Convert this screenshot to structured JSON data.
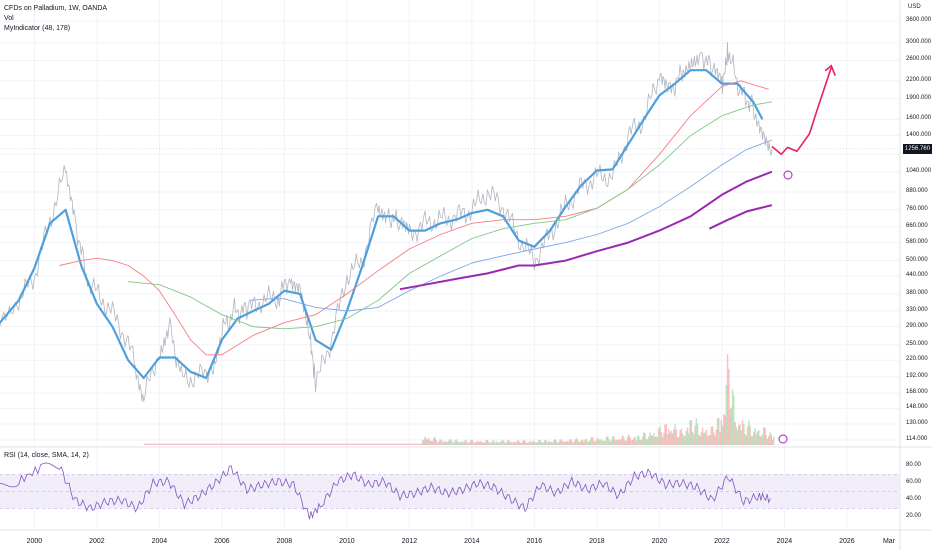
{
  "legend": {
    "title": "CFDs on Palladium, 1W, OANDA",
    "vol_label": "Vol",
    "indicator_label": "MyIndicator (48, 178)"
  },
  "rsi": {
    "label": "RSI (14, close, SMA, 14, 2)",
    "ticks": [
      "80.00",
      "60.00",
      "40.00",
      "20.00"
    ],
    "band_color": "#ede7f6",
    "line_color": "#7e57c2"
  },
  "currency": "USD",
  "last_price": "1256.760",
  "colors": {
    "price_line": "#b2b5be",
    "thick_ma": "#4e9fdd",
    "red_ma": "#f77c80",
    "green_ma": "#81c784",
    "blue_ma": "#7fa8e6",
    "purple_ma": "#9c27b0",
    "projection": "#e91e63"
  },
  "chart_data": {
    "type": "line",
    "title": "CFDs on Palladium, 1W, OANDA",
    "x_ticks": [
      "2000",
      "2002",
      "2004",
      "2006",
      "2008",
      "2010",
      "2012",
      "2014",
      "2016",
      "2018",
      "2020",
      "2022",
      "2024",
      "2026",
      "Mar"
    ],
    "y_ticks": [
      "3600.000",
      "3000.000",
      "2600.000",
      "2200.000",
      "1900.000",
      "1600.000",
      "1400.000",
      "1200.000",
      "1040.000",
      "880.000",
      "760.000",
      "660.000",
      "580.000",
      "500.000",
      "440.000",
      "380.000",
      "330.000",
      "290.000",
      "250.000",
      "220.000",
      "192.000",
      "168.000",
      "148.000",
      "130.000",
      "114.000"
    ],
    "y_scale": "log",
    "series": [
      {
        "name": "",
        "role": "price",
        "x": [
          1998.9,
          1999.5,
          2000.0,
          2000.5,
          2001.0,
          2001.3,
          2001.7,
          2002.2,
          2002.7,
          2003.2,
          2003.5,
          2004.0,
          2004.3,
          2004.7,
          2005.2,
          2005.7,
          2006.0,
          2006.4,
          2006.8,
          2007.3,
          2007.8,
          2008.2,
          2008.5,
          2008.8,
          2009.0,
          2009.5,
          2010.0,
          2010.5,
          2011.0,
          2011.3,
          2011.7,
          2012.0,
          2012.5,
          2013.0,
          2013.5,
          2014.0,
          2014.5,
          2015.0,
          2015.5,
          2016.0,
          2016.5,
          2017.0,
          2017.5,
          2018.0,
          2018.5,
          2019.0,
          2019.5,
          2020.0,
          2020.3,
          2020.7,
          2021.0,
          2021.3,
          2021.7,
          2022.0,
          2022.2,
          2022.6,
          2023.0,
          2023.3,
          2023.6
        ],
        "y": [
          300,
          360,
          440,
          700,
          1050,
          700,
          420,
          360,
          300,
          220,
          160,
          240,
          300,
          190,
          190,
          210,
          280,
          330,
          330,
          360,
          370,
          440,
          420,
          280,
          180,
          260,
          440,
          500,
          800,
          740,
          660,
          620,
          680,
          700,
          720,
          760,
          880,
          780,
          600,
          500,
          620,
          780,
          920,
          1000,
          1000,
          1400,
          1600,
          2300,
          2000,
          2300,
          2600,
          2800,
          2400,
          2100,
          2800,
          2000,
          1800,
          1500,
          1250
        ]
      },
      {
        "name": "",
        "role": "thick_ma",
        "x": [
          1998.9,
          1999.5,
          2000.0,
          2000.5,
          2001.0,
          2001.5,
          2002.0,
          2002.5,
          2003.0,
          2003.5,
          2004.0,
          2004.5,
          2005.0,
          2005.5,
          2006.0,
          2006.5,
          2007.0,
          2007.5,
          2008.0,
          2008.5,
          2009.0,
          2009.5,
          2010.0,
          2010.5,
          2011.0,
          2011.5,
          2012.0,
          2012.5,
          2013.0,
          2013.5,
          2014.0,
          2014.5,
          2015.0,
          2015.5,
          2016.0,
          2016.5,
          2017.0,
          2017.5,
          2018.0,
          2018.5,
          2019.0,
          2019.5,
          2020.0,
          2020.5,
          2021.0,
          2021.5,
          2022.0,
          2022.5,
          2023.0,
          2023.3
        ],
        "y": [
          300,
          360,
          470,
          680,
          760,
          480,
          350,
          290,
          220,
          190,
          225,
          225,
          200,
          190,
          260,
          310,
          330,
          350,
          390,
          380,
          260,
          240,
          330,
          480,
          720,
          720,
          640,
          640,
          680,
          700,
          740,
          760,
          720,
          590,
          560,
          640,
          780,
          930,
          1050,
          1060,
          1300,
          1600,
          1950,
          2150,
          2400,
          2400,
          2150,
          2150,
          1850,
          1600
        ]
      },
      {
        "name": "",
        "role": "red_ma",
        "x": [
          2000.8,
          2001.5,
          2002.0,
          2002.5,
          2003.0,
          2003.5,
          2004.0,
          2004.5,
          2005.0,
          2005.5,
          2006.0,
          2007.0,
          2008.0,
          2009.0,
          2010.0,
          2011.0,
          2012.0,
          2013.0,
          2014.0,
          2015.0,
          2016.0,
          2017.0,
          2018.0,
          2019.0,
          2020.0,
          2021.0,
          2022.0,
          2022.6,
          2023.5
        ],
        "y": [
          480,
          500,
          510,
          500,
          480,
          440,
          390,
          320,
          260,
          230,
          230,
          270,
          300,
          320,
          380,
          460,
          550,
          620,
          680,
          700,
          700,
          720,
          770,
          900,
          1200,
          1650,
          2100,
          2200,
          2050
        ]
      },
      {
        "name": "",
        "role": "green_ma",
        "x": [
          2003.0,
          2004.0,
          2005.0,
          2006.0,
          2007.0,
          2008.0,
          2009.0,
          2010.0,
          2011.0,
          2012.0,
          2013.0,
          2014.0,
          2015.0,
          2016.0,
          2017.0,
          2018.0,
          2019.0,
          2020.0,
          2021.0,
          2022.0,
          2023.0,
          2023.6
        ],
        "y": [
          420,
          410,
          370,
          320,
          290,
          285,
          290,
          310,
          360,
          450,
          520,
          600,
          650,
          680,
          700,
          770,
          900,
          1100,
          1400,
          1650,
          1800,
          1850
        ]
      },
      {
        "name": "",
        "role": "blue_ma",
        "x": [
          2006.9,
          2007.5,
          2008.0,
          2009.0,
          2010.0,
          2011.0,
          2012.0,
          2013.0,
          2014.0,
          2015.0,
          2016.0,
          2017.0,
          2018.0,
          2019.0,
          2020.0,
          2021.0,
          2022.0,
          2022.8,
          2023.6
        ],
        "y": [
          360,
          365,
          365,
          340,
          330,
          340,
          390,
          440,
          490,
          520,
          550,
          580,
          620,
          680,
          780,
          920,
          1100,
          1250,
          1350
        ]
      },
      {
        "name": "",
        "role": "purple_ma",
        "x": [
          2011.7,
          2012.5,
          2013.5,
          2014.5,
          2015.5,
          2016.0,
          2017.0,
          2018.0,
          2019.0,
          2020.0,
          2021.0,
          2022.0,
          2022.8,
          2023.6
        ],
        "y": [
          395,
          410,
          430,
          450,
          480,
          480,
          500,
          540,
          580,
          640,
          720,
          860,
          960,
          1040
        ]
      },
      {
        "name": "",
        "role": "purple_upper",
        "x": [
          2021.6,
          2022.2,
          2022.8,
          2023.6
        ],
        "y": [
          650,
          700,
          750,
          790
        ]
      },
      {
        "name": "",
        "role": "projection",
        "x": [
          2023.6,
          2023.9,
          2024.1,
          2024.4,
          2024.8,
          2025.1,
          2025.5
        ],
        "y": [
          1280,
          1200,
          1270,
          1230,
          1420,
          1800,
          2450
        ]
      }
    ],
    "volume": {
      "x": [
        2012.4,
        2013.0,
        2014.0,
        2015.0,
        2016.0,
        2017.0,
        2018.0,
        2019.0,
        2019.5,
        2020.0,
        2020.3,
        2020.7,
        2021.0,
        2021.3,
        2021.7,
        2022.0,
        2022.2,
        2022.4,
        2022.7,
        2023.0,
        2023.3,
        2023.6
      ],
      "y": [
        0.1,
        0.06,
        0.05,
        0.05,
        0.05,
        0.06,
        0.08,
        0.1,
        0.12,
        0.18,
        0.25,
        0.15,
        0.3,
        0.2,
        0.18,
        0.4,
        1.0,
        0.35,
        0.25,
        0.2,
        0.18,
        0.12
      ]
    },
    "rsi_series": {
      "x": [
        1998.9,
        1999.5,
        2000.2,
        2000.8,
        2001.3,
        2001.8,
        2002.3,
        2002.8,
        2003.3,
        2003.8,
        2004.3,
        2004.8,
        2005.3,
        2005.8,
        2006.3,
        2006.8,
        2007.3,
        2007.8,
        2008.3,
        2008.8,
        2009.2,
        2009.7,
        2010.2,
        2010.7,
        2011.2,
        2011.7,
        2012.2,
        2012.7,
        2013.2,
        2013.7,
        2014.2,
        2014.7,
        2015.2,
        2015.7,
        2016.2,
        2016.7,
        2017.2,
        2017.7,
        2018.2,
        2018.7,
        2019.2,
        2019.7,
        2020.2,
        2020.7,
        2021.2,
        2021.7,
        2022.2,
        2022.7,
        2023.2,
        2023.6
      ],
      "y": [
        55,
        62,
        78,
        80,
        40,
        30,
        38,
        40,
        30,
        60,
        62,
        35,
        45,
        60,
        78,
        52,
        58,
        62,
        58,
        20,
        35,
        62,
        70,
        58,
        62,
        45,
        48,
        55,
        48,
        52,
        60,
        55,
        42,
        30,
        58,
        48,
        62,
        52,
        60,
        45,
        68,
        72,
        58,
        60,
        55,
        40,
        68,
        38,
        45,
        40
      ]
    }
  }
}
